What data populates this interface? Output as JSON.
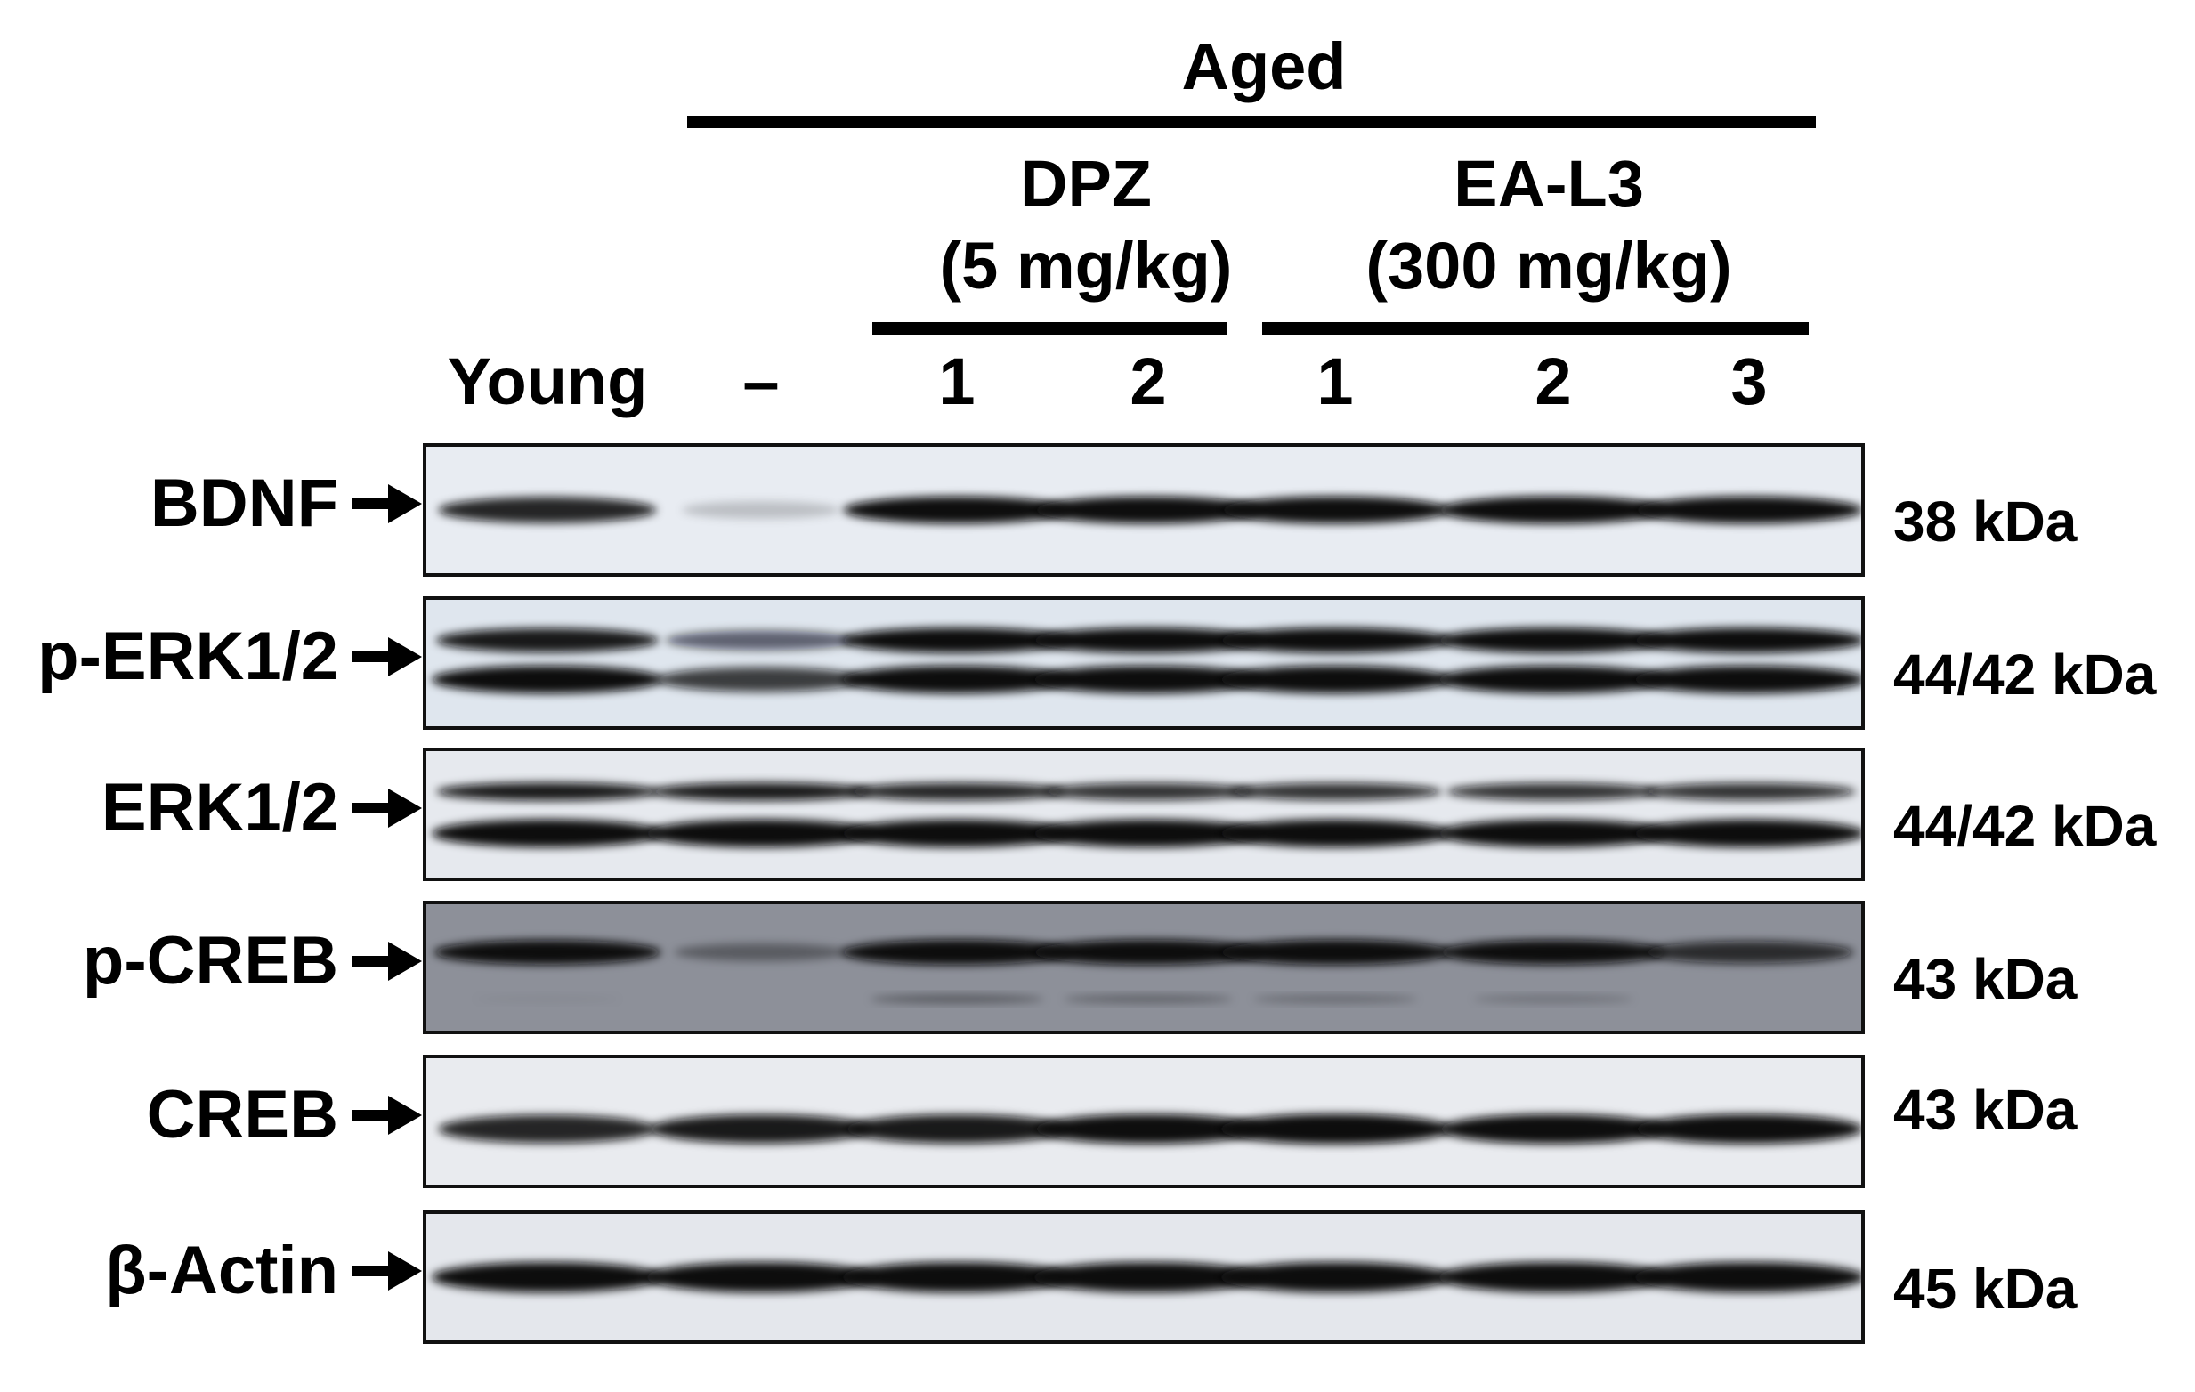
{
  "header": {
    "group": "Aged",
    "dpz_name": "DPZ",
    "dpz_dose": "(5 mg/kg)",
    "ea_name": "EA-L3",
    "ea_dose": "(300 mg/kg)"
  },
  "lanes": [
    "Young",
    "–",
    "1",
    "2",
    "1",
    "2",
    "3"
  ],
  "rows": [
    {
      "label": "BDNF",
      "kda": "38 kDa",
      "bg": "#e8ecf2",
      "bands": [
        {
          "y": 0.5,
          "h": 0.22,
          "i": [
            0.85,
            0.18,
            0.95,
            0.95,
            0.95,
            0.97,
            0.95
          ]
        }
      ]
    },
    {
      "label": "p-ERK1/2",
      "kda": "44/42 kDa",
      "bg": "#dfe6ee",
      "bands": [
        {
          "y": 0.32,
          "h": 0.2,
          "i": [
            0.9,
            0.55,
            1,
            1,
            1,
            1,
            1
          ]
        },
        {
          "y": 0.63,
          "h": 0.22,
          "i": [
            1,
            0.75,
            1,
            1,
            1,
            1,
            1
          ]
        }
      ]
    },
    {
      "label": "ERK1/2",
      "kda": "44/42 kDa",
      "bg": "#e6e9ee",
      "bands": [
        {
          "y": 0.32,
          "h": 0.15,
          "i": [
            0.9,
            0.9,
            0.85,
            0.8,
            0.8,
            0.8,
            0.8
          ]
        },
        {
          "y": 0.65,
          "h": 0.22,
          "i": [
            1,
            1,
            1,
            1,
            1,
            1,
            1
          ]
        }
      ]
    },
    {
      "label": "p-CREB",
      "kda": "43 kDa",
      "bg": "#8d9099",
      "bands": [
        {
          "y": 0.38,
          "h": 0.2,
          "i": [
            0.95,
            0.35,
            1,
            1,
            1,
            0.95,
            0.75
          ]
        },
        {
          "y": 0.75,
          "h": 0.1,
          "i": [
            0.05,
            0,
            0.35,
            0.3,
            0.25,
            0.2,
            0
          ]
        }
      ]
    },
    {
      "label": "CREB",
      "kda": "43 kDa",
      "bg": "#e9ebef",
      "bands": [
        {
          "y": 0.56,
          "h": 0.24,
          "i": [
            0.85,
            0.9,
            0.9,
            0.95,
            1,
            0.95,
            0.95
          ]
        }
      ]
    },
    {
      "label": "β-Actin",
      "kda": "45 kDa",
      "bg": "#e4e7ec",
      "bands": [
        {
          "y": 0.5,
          "h": 0.24,
          "i": [
            1,
            1,
            1,
            1,
            1,
            1,
            1
          ]
        }
      ]
    }
  ]
}
